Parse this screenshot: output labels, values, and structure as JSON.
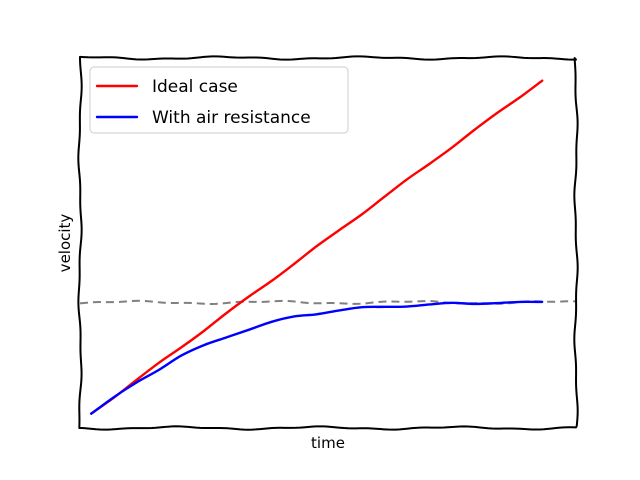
{
  "chart_data": {
    "type": "line",
    "title": "",
    "xlabel": "time",
    "ylabel": "velocity",
    "xlim": [
      -0.5,
      21.5
    ],
    "ylim": [
      -0.13,
      3.2
    ],
    "grid": false,
    "legend_placement": "top-left",
    "x": [
      0,
      1,
      2,
      3,
      4,
      5,
      6,
      7,
      8,
      9,
      10,
      11,
      12,
      13,
      14,
      15,
      16,
      17,
      18,
      19,
      20
    ],
    "series": [
      {
        "name": "Ideal case",
        "color": "#ff0000",
        "values": [
          0,
          0.15,
          0.3,
          0.45,
          0.6,
          0.75,
          0.9,
          1.05,
          1.2,
          1.35,
          1.5,
          1.65,
          1.8,
          1.95,
          2.1,
          2.25,
          2.4,
          2.55,
          2.7,
          2.85,
          3.0
        ]
      },
      {
        "name": "With air resistance",
        "color": "#0000ff",
        "values": [
          0,
          0.14,
          0.28,
          0.4,
          0.52,
          0.61,
          0.69,
          0.76,
          0.82,
          0.87,
          0.9,
          0.93,
          0.95,
          0.96,
          0.97,
          0.98,
          0.99,
          0.99,
          1.0,
          1.0,
          1.0
        ]
      }
    ],
    "reference_line": {
      "y": 1.0,
      "style": "dashed",
      "color": "#808080"
    }
  }
}
